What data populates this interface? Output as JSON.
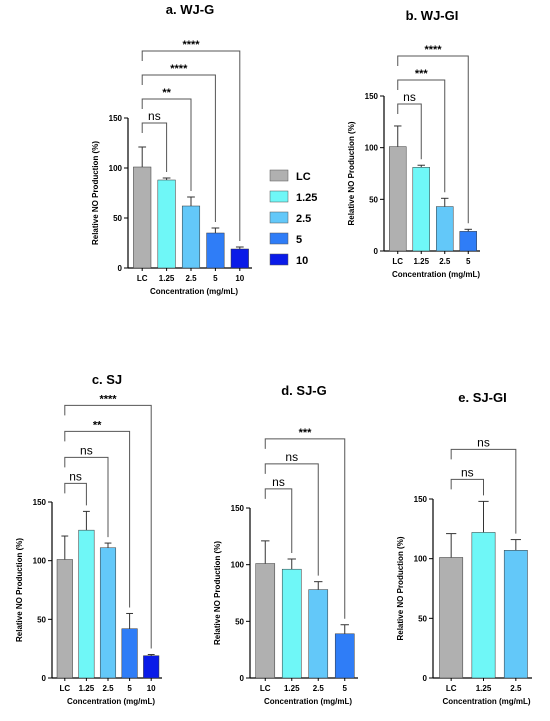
{
  "legend": {
    "items": [
      {
        "label": "LC",
        "color": "#b0b0b0"
      },
      {
        "label": "1.25",
        "color": "#6ff7f7"
      },
      {
        "label": "2.5",
        "color": "#63c8f9"
      },
      {
        "label": "5",
        "color": "#2f7df7"
      },
      {
        "label": "10",
        "color": "#0a1be8"
      }
    ]
  },
  "chart_data": [
    {
      "type": "bar",
      "title": "a. WJ-G",
      "xlabel": "Concentration (mg/mL)",
      "ylabel": "Relative NO Production (%)",
      "ylim": [
        0,
        150
      ],
      "yticks": [
        "0",
        "50",
        "100",
        "150"
      ],
      "categories": [
        "LC",
        "1.25",
        "2.5",
        "5",
        "10"
      ],
      "values": [
        101,
        88,
        62,
        35,
        19
      ],
      "errors": [
        20,
        2,
        9,
        5,
        2
      ],
      "colors": [
        "#b0b0b0",
        "#6ff7f7",
        "#63c8f9",
        "#2f7df7",
        "#0a1be8"
      ],
      "comparisons": [
        {
          "from": 0,
          "to": 1,
          "label": "ns"
        },
        {
          "from": 0,
          "to": 2,
          "label": "**"
        },
        {
          "from": 0,
          "to": 3,
          "label": "****"
        },
        {
          "from": 0,
          "to": 4,
          "label": "****"
        }
      ]
    },
    {
      "type": "bar",
      "title": "b. WJ-GI",
      "xlabel": "Concentration (mg/mL)",
      "ylabel": "Relative NO Production (%)",
      "ylim": [
        0,
        150
      ],
      "yticks": [
        "0",
        "50",
        "100",
        "150"
      ],
      "categories": [
        "LC",
        "1.25",
        "2.5",
        "5"
      ],
      "values": [
        101,
        81,
        43,
        19
      ],
      "errors": [
        20,
        2,
        8,
        2
      ],
      "colors": [
        "#b0b0b0",
        "#6ff7f7",
        "#63c8f9",
        "#2f7df7"
      ],
      "comparisons": [
        {
          "from": 0,
          "to": 1,
          "label": "ns"
        },
        {
          "from": 0,
          "to": 2,
          "label": "***"
        },
        {
          "from": 0,
          "to": 3,
          "label": "****"
        }
      ]
    },
    {
      "type": "bar",
      "title": "c. SJ",
      "xlabel": "Concentration (mg/mL)",
      "ylabel": "Relative NO Production (%)",
      "ylim": [
        0,
        150
      ],
      "yticks": [
        "0",
        "50",
        "100",
        "150"
      ],
      "categories": [
        "LC",
        "1.25",
        "2.5",
        "5",
        "10"
      ],
      "values": [
        101,
        126,
        111,
        42,
        19
      ],
      "errors": [
        20,
        16,
        4,
        13,
        1
      ],
      "colors": [
        "#b0b0b0",
        "#6ff7f7",
        "#63c8f9",
        "#2f7df7",
        "#0a1be8"
      ],
      "comparisons": [
        {
          "from": 0,
          "to": 1,
          "label": "ns"
        },
        {
          "from": 0,
          "to": 2,
          "label": "ns"
        },
        {
          "from": 0,
          "to": 3,
          "label": "**"
        },
        {
          "from": 0,
          "to": 4,
          "label": "****"
        }
      ]
    },
    {
      "type": "bar",
      "title": "d. SJ-G",
      "xlabel": "Concentration (mg/mL)",
      "ylabel": "Relative NO Production (%)",
      "ylim": [
        0,
        150
      ],
      "yticks": [
        "0",
        "50",
        "100",
        "150"
      ],
      "categories": [
        "LC",
        "1.25",
        "2.5",
        "5"
      ],
      "values": [
        101,
        96,
        78,
        39
      ],
      "errors": [
        20,
        9,
        7,
        8
      ],
      "colors": [
        "#b0b0b0",
        "#6ff7f7",
        "#63c8f9",
        "#2f7df7"
      ],
      "comparisons": [
        {
          "from": 0,
          "to": 1,
          "label": "ns"
        },
        {
          "from": 0,
          "to": 2,
          "label": "ns"
        },
        {
          "from": 0,
          "to": 3,
          "label": "***"
        }
      ]
    },
    {
      "type": "bar",
      "title": "e. SJ-GI",
      "xlabel": "Concentration (mg/mL)",
      "ylabel": "Relative NO Production (%)",
      "ylim": [
        0,
        150
      ],
      "yticks": [
        "0",
        "50",
        "100",
        "150"
      ],
      "categories": [
        "LC",
        "1.25",
        "2.5"
      ],
      "values": [
        101,
        122,
        107
      ],
      "errors": [
        20,
        26,
        9
      ],
      "colors": [
        "#b0b0b0",
        "#6ff7f7",
        "#63c8f9"
      ],
      "comparisons": [
        {
          "from": 0,
          "to": 1,
          "label": "ns"
        },
        {
          "from": 0,
          "to": 2,
          "label": "ns"
        }
      ]
    }
  ]
}
